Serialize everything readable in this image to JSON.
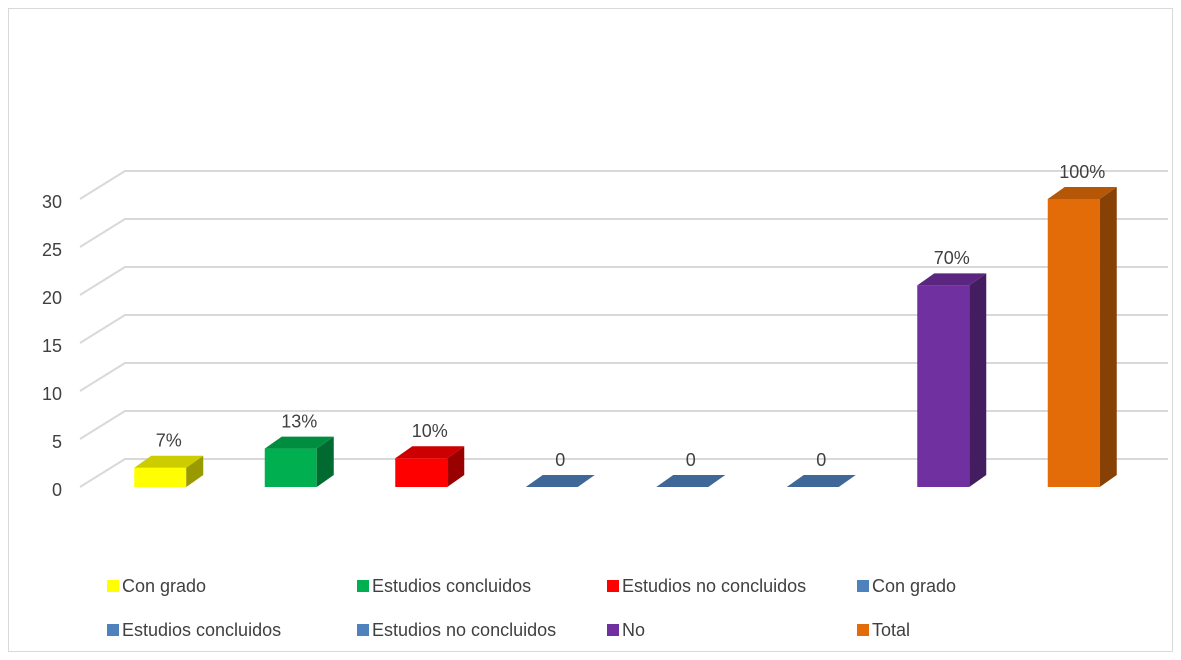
{
  "chart_data": {
    "type": "bar3d",
    "categories": [
      "Con grado",
      "Estudios concluidos",
      "Estudios no concluidos",
      "Con grado",
      "Estudios concluidos",
      "Estudios no concluidos",
      "No",
      "Total"
    ],
    "values": [
      2,
      4,
      3,
      0,
      0,
      0,
      21,
      30
    ],
    "data_labels": [
      "7%",
      "13%",
      "10%",
      "0",
      "0",
      "0",
      "70%",
      "100%"
    ],
    "colors": [
      "#ffff00",
      "#00b050",
      "#ff0000",
      "#4f81bd",
      "#4f81bd",
      "#4f81bd",
      "#7030a0",
      "#e36c09"
    ],
    "ylim": [
      0,
      30
    ],
    "yticks": [
      0,
      5,
      10,
      15,
      20,
      25,
      30
    ],
    "grid": true,
    "legend": "bottom"
  }
}
